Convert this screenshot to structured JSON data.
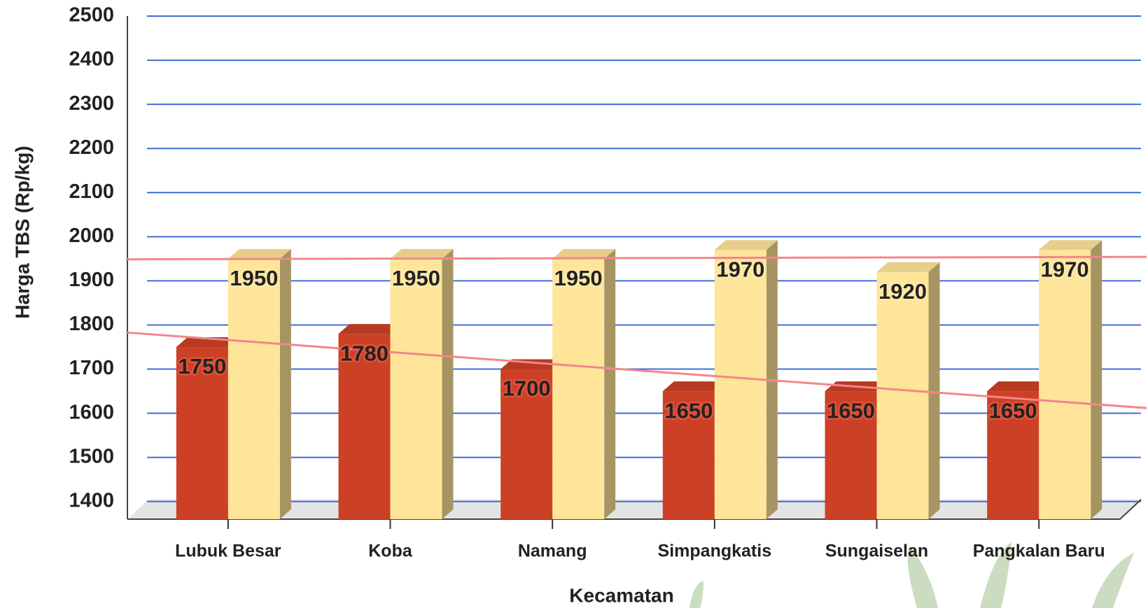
{
  "chart_data": {
    "type": "bar3d",
    "x_label": "Kecamatan",
    "y_label": "Harga TBS (Rp/kg)",
    "categories": [
      "Lubuk Besar",
      "Koba",
      "Namang",
      "Simpangkatis",
      "Sungaiselan",
      "Pangkalan Baru"
    ],
    "series": [
      {
        "color": "#cc4125",
        "values": [
          1750,
          1780,
          1700,
          1650,
          1650,
          1650
        ]
      },
      {
        "color": "#ffe599",
        "values": [
          1950,
          1950,
          1950,
          1970,
          1920,
          1970
        ]
      }
    ],
    "ylim": [
      1360,
      2500
    ],
    "yticks": [
      1400,
      1500,
      1600,
      1700,
      1800,
      1900,
      2000,
      2100,
      2200,
      2300,
      2400,
      2500
    ],
    "grid": true,
    "grid_color": "#3c6fd6",
    "trendline": true,
    "trendline_color": "#f4868a"
  }
}
